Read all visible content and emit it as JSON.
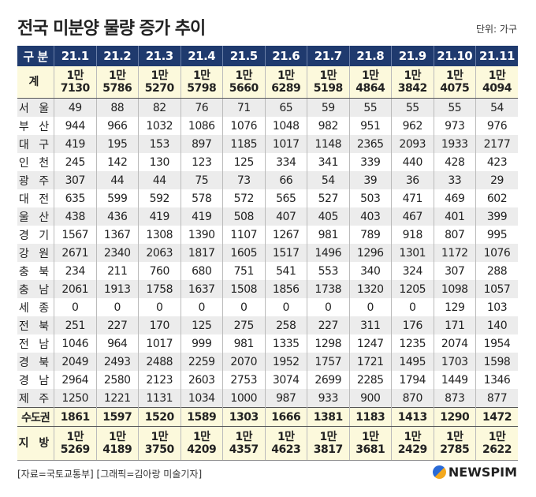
{
  "title": "전국 미분양 물량 증가 추이",
  "unit": "단위: 가구",
  "table": {
    "header_label": "구 분",
    "columns": [
      "21.1",
      "21.2",
      "21.3",
      "21.4",
      "21.5",
      "21.6",
      "21.7",
      "21.8",
      "21.9",
      "21.10",
      "21.11"
    ],
    "total": {
      "label": "계",
      "values": [
        [
          "1만",
          "7130"
        ],
        [
          "1만",
          "5786"
        ],
        [
          "1만",
          "5270"
        ],
        [
          "1만",
          "5798"
        ],
        [
          "1만",
          "5660"
        ],
        [
          "1만",
          "6289"
        ],
        [
          "1만",
          "5198"
        ],
        [
          "1만",
          "4864"
        ],
        [
          "1만",
          "3842"
        ],
        [
          "1만",
          "4075"
        ],
        [
          "1만",
          "4094"
        ]
      ]
    },
    "rows": [
      {
        "label": "서 울",
        "values": [
          "49",
          "88",
          "82",
          "76",
          "71",
          "65",
          "59",
          "55",
          "55",
          "55",
          "54"
        ]
      },
      {
        "label": "부 산",
        "values": [
          "944",
          "966",
          "1032",
          "1086",
          "1076",
          "1048",
          "982",
          "951",
          "962",
          "973",
          "976"
        ]
      },
      {
        "label": "대 구",
        "values": [
          "419",
          "195",
          "153",
          "897",
          "1185",
          "1017",
          "1148",
          "2365",
          "2093",
          "1933",
          "2177"
        ]
      },
      {
        "label": "인 천",
        "values": [
          "245",
          "142",
          "130",
          "123",
          "125",
          "334",
          "341",
          "339",
          "440",
          "428",
          "423"
        ]
      },
      {
        "label": "광 주",
        "values": [
          "307",
          "44",
          "44",
          "75",
          "73",
          "66",
          "54",
          "39",
          "36",
          "33",
          "29"
        ]
      },
      {
        "label": "대 전",
        "values": [
          "635",
          "599",
          "592",
          "578",
          "572",
          "565",
          "527",
          "503",
          "471",
          "469",
          "602"
        ]
      },
      {
        "label": "울 산",
        "values": [
          "438",
          "436",
          "419",
          "419",
          "508",
          "407",
          "405",
          "403",
          "467",
          "401",
          "399"
        ]
      },
      {
        "label": "경 기",
        "values": [
          "1567",
          "1367",
          "1308",
          "1390",
          "1107",
          "1267",
          "981",
          "789",
          "918",
          "807",
          "995"
        ]
      },
      {
        "label": "강 원",
        "values": [
          "2671",
          "2340",
          "2063",
          "1817",
          "1605",
          "1517",
          "1496",
          "1296",
          "1301",
          "1172",
          "1076"
        ]
      },
      {
        "label": "충 북",
        "values": [
          "234",
          "211",
          "760",
          "680",
          "751",
          "541",
          "553",
          "340",
          "324",
          "307",
          "288"
        ]
      },
      {
        "label": "충 남",
        "values": [
          "2061",
          "1913",
          "1758",
          "1637",
          "1508",
          "1856",
          "1738",
          "1320",
          "1205",
          "1098",
          "1057"
        ]
      },
      {
        "label": "세 종",
        "values": [
          "0",
          "0",
          "0",
          "0",
          "0",
          "0",
          "0",
          "0",
          "0",
          "129",
          "103"
        ]
      },
      {
        "label": "전 북",
        "values": [
          "251",
          "227",
          "170",
          "125",
          "275",
          "258",
          "227",
          "311",
          "176",
          "171",
          "140"
        ]
      },
      {
        "label": "전 남",
        "values": [
          "1046",
          "964",
          "1017",
          "999",
          "981",
          "1335",
          "1298",
          "1247",
          "1235",
          "2074",
          "1954"
        ]
      },
      {
        "label": "경 북",
        "values": [
          "2049",
          "2493",
          "2488",
          "2259",
          "2070",
          "1952",
          "1757",
          "1721",
          "1495",
          "1703",
          "1598"
        ]
      },
      {
        "label": "경 남",
        "values": [
          "2964",
          "2580",
          "2123",
          "2603",
          "2753",
          "3074",
          "2699",
          "2285",
          "1794",
          "1449",
          "1346"
        ]
      },
      {
        "label": "제 주",
        "values": [
          "1250",
          "1221",
          "1131",
          "1034",
          "1000",
          "987",
          "933",
          "900",
          "870",
          "873",
          "877"
        ]
      }
    ],
    "metro": {
      "label": "수도권",
      "values": [
        "1861",
        "1597",
        "1520",
        "1589",
        "1303",
        "1666",
        "1381",
        "1183",
        "1413",
        "1290",
        "1472"
      ]
    },
    "local": {
      "label": "지 방",
      "values": [
        [
          "1만",
          "5269"
        ],
        [
          "1만",
          "4189"
        ],
        [
          "1만",
          "3750"
        ],
        [
          "1만",
          "4209"
        ],
        [
          "1만",
          "4357"
        ],
        [
          "1만",
          "4623"
        ],
        [
          "1만",
          "3817"
        ],
        [
          "1만",
          "3681"
        ],
        [
          "1만",
          "2429"
        ],
        [
          "1만",
          "2785"
        ],
        [
          "1만",
          "2622"
        ]
      ]
    }
  },
  "footer": "[자료=국토교통부] [그래픽=김아랑 미술기자]",
  "logo": "NEWSPIM",
  "colors": {
    "header": "#1f3a6e",
    "highlight": "#fcf9dc",
    "stripe": "#ececec"
  }
}
